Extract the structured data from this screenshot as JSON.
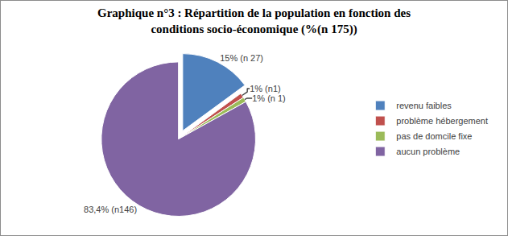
{
  "chart_data": {
    "type": "pie",
    "title": "Graphique n°3 : Répartition de la population en fonction des\nconditions socio-économique (%(n 175))",
    "categories": [
      "revenu faibles",
      "problème hébergement",
      "pas de domcile fixe",
      "aucun problème"
    ],
    "values": [
      15,
      1,
      1,
      83.4
    ],
    "value_labels": [
      "15% (n 27)",
      "1% (n1)",
      "1% (n 1)",
      "83,4% (n146)"
    ],
    "colors": [
      "#4f81bd",
      "#c0504d",
      "#9bbb59",
      "#8064a2"
    ],
    "data_labels": true,
    "legend": "right"
  }
}
